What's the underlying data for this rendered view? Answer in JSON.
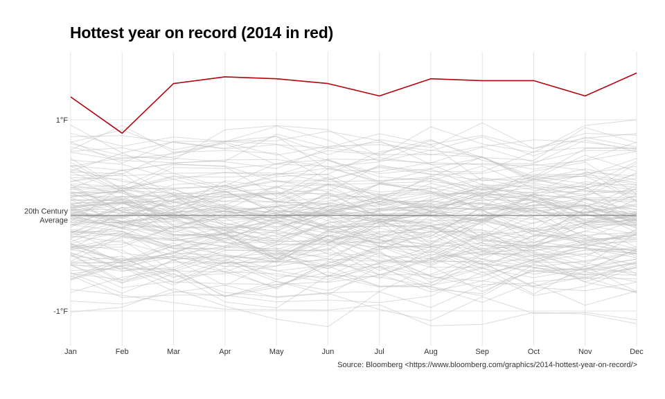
{
  "chart_data": {
    "type": "line",
    "title": "Hottest year on record (2014 in red)",
    "source": "Source: Bloomberg <https://www.bloomberg.com/graphics/2014-hottest-year-on-record/>",
    "categories": [
      "Jan",
      "Feb",
      "Mar",
      "Apr",
      "May",
      "Jun",
      "Jul",
      "Aug",
      "Sep",
      "Oct",
      "Nov",
      "Dec"
    ],
    "y_ticks": [
      {
        "value": 1,
        "label": "1°F"
      },
      {
        "value": 0,
        "label": "20th Century\nAverage"
      },
      {
        "value": -1,
        "label": "-1°F"
      }
    ],
    "ylim": [
      -1.35,
      1.7
    ],
    "grid": true,
    "highlight": {
      "name": "2014",
      "color": "#b5000c",
      "values": [
        1.24,
        0.86,
        1.38,
        1.45,
        1.43,
        1.38,
        1.25,
        1.43,
        1.41,
        1.41,
        1.25,
        1.49
      ]
    },
    "background_series_count": 135,
    "background_color": "#bdbdbd"
  }
}
